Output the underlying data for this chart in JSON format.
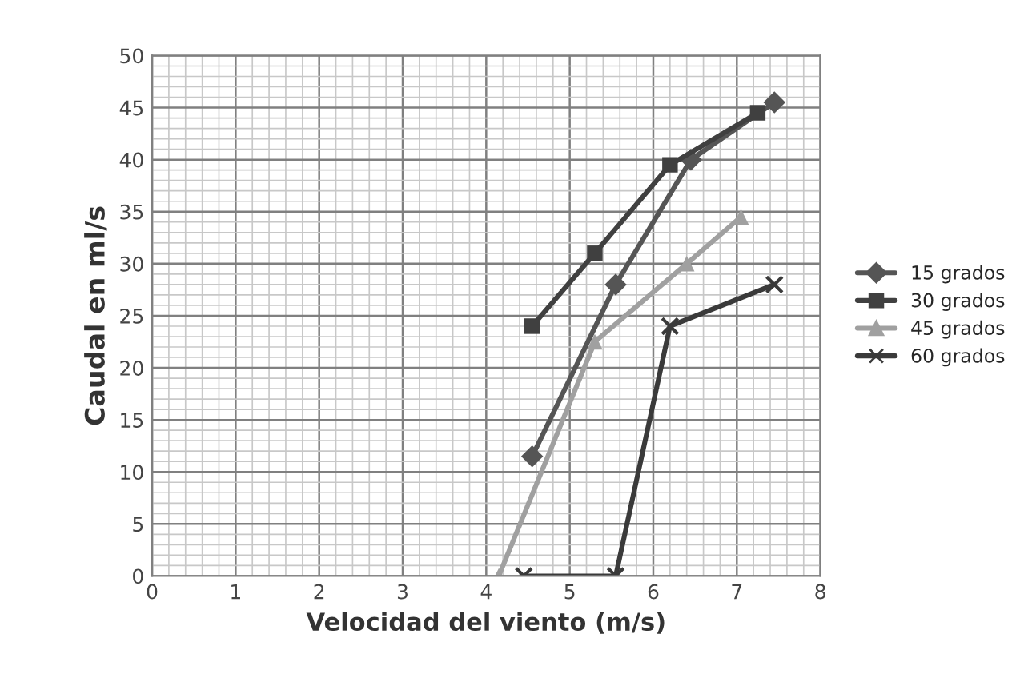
{
  "chart_data": {
    "type": "line",
    "xlabel": "Velocidad del viento (m/s)",
    "ylabel": "Caudal en ml/s",
    "xlim": [
      0,
      8
    ],
    "xticks": [
      0,
      1,
      2,
      3,
      4,
      5,
      6,
      7,
      8
    ],
    "ylim": [
      0,
      50
    ],
    "yticks": [
      0,
      5,
      10,
      15,
      20,
      25,
      30,
      35,
      40,
      45,
      50
    ],
    "grid": true,
    "legend": "right",
    "series": [
      {
        "name": "15 grados",
        "color": "#555555",
        "marker": "diamond",
        "x": [
          4.55,
          5.55,
          6.45,
          7.45
        ],
        "values": [
          11.5,
          28,
          40,
          45.5
        ]
      },
      {
        "name": "30 grados",
        "color": "#404040",
        "marker": "square",
        "x": [
          4.55,
          5.3,
          6.2,
          7.25
        ],
        "values": [
          24,
          31,
          39.5,
          44.5
        ]
      },
      {
        "name": "45 grados",
        "color": "#a0a0a0",
        "marker": "triangle",
        "x": [
          4.15,
          5.3,
          6.4,
          7.05
        ],
        "values": [
          0,
          22.5,
          30,
          34.5
        ]
      },
      {
        "name": "60 grados",
        "color": "#3a3a3a",
        "marker": "cross",
        "x": [
          4.45,
          5.55,
          6.2,
          7.45
        ],
        "values": [
          0,
          0,
          24,
          28
        ]
      }
    ]
  }
}
